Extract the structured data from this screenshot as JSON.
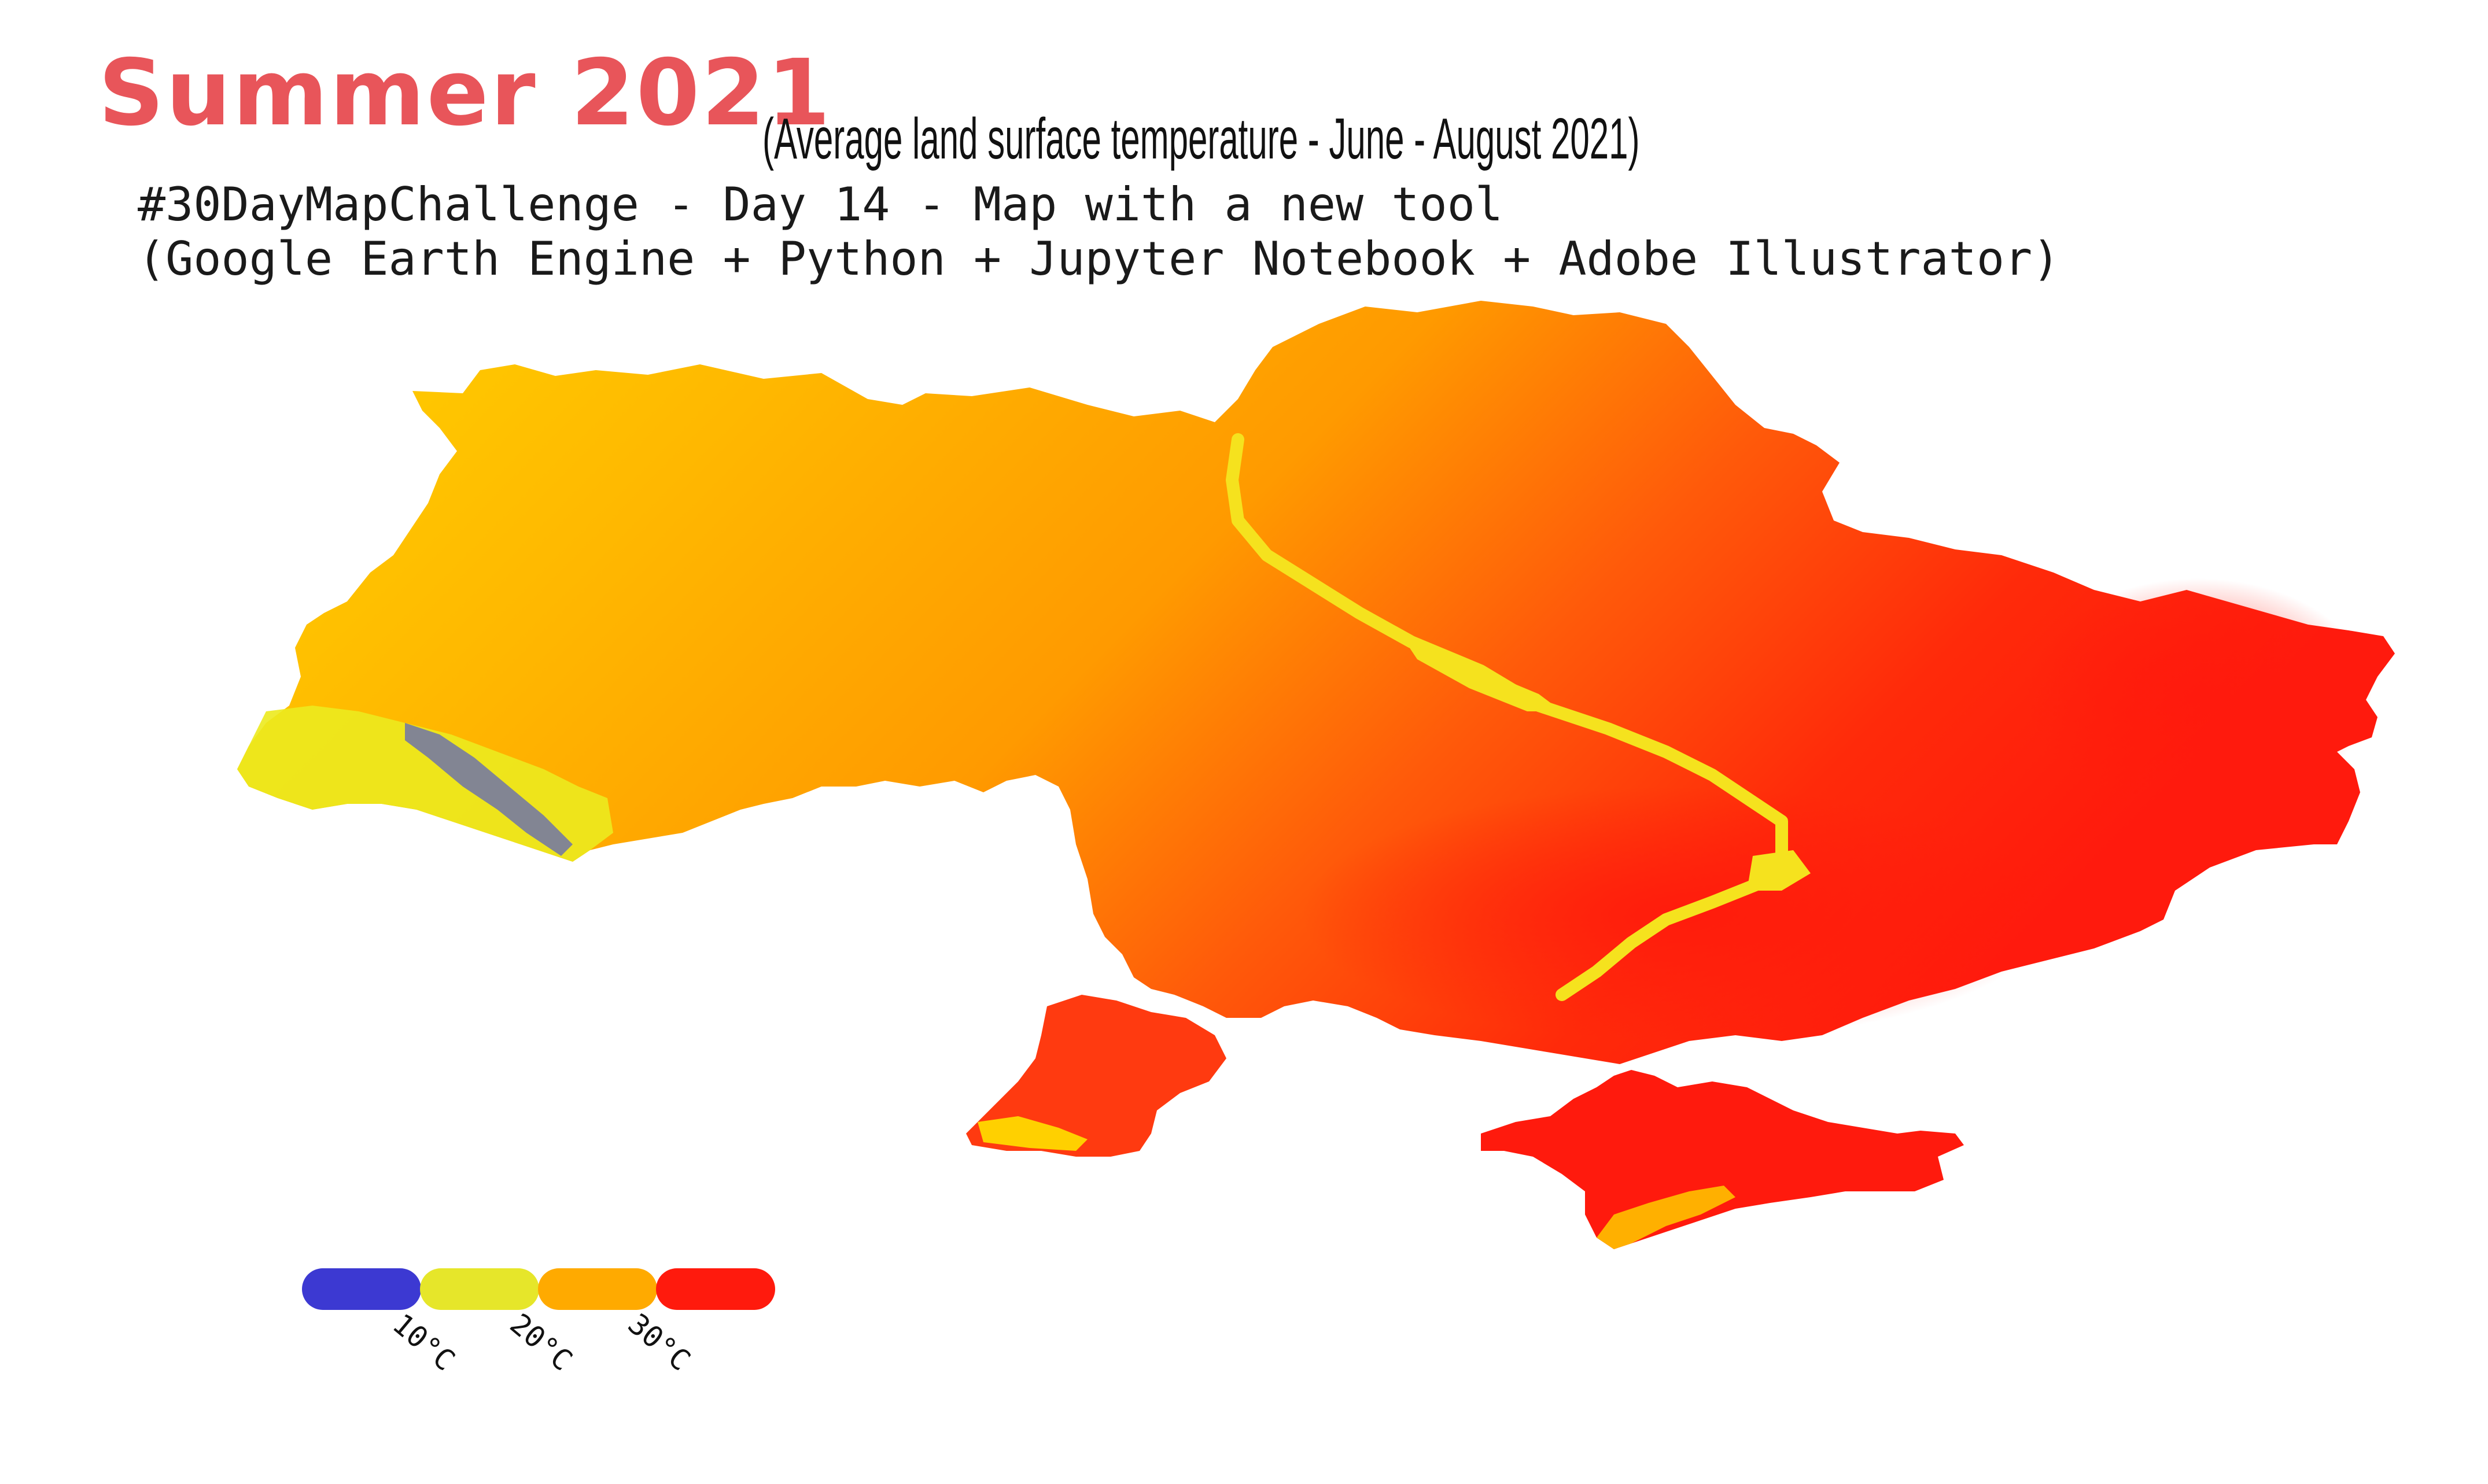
{
  "header": {
    "title": "Summer 2021",
    "subtitle": "(Average land surface temperature - June - August 2021)",
    "line1": "#30DayMapChallenge - Day 14 - Map with a new tool",
    "line2": "(Google Earth Engine + Python + Jupyter Notebook + Adobe Illustrator)"
  },
  "colors": {
    "title": "#e8555a",
    "cold": "#3c39d2",
    "mild": "#e6e62a",
    "warm": "#ffaa00",
    "hot": "#ff1a0d"
  },
  "legend": {
    "labels": [
      "10°C",
      "20°C",
      "30°C"
    ]
  }
}
